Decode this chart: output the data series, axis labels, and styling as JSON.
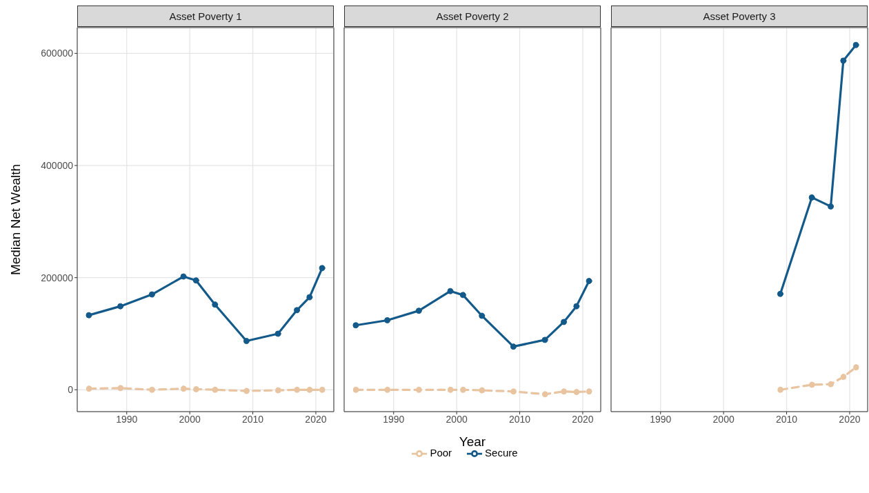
{
  "chart_data": [
    {
      "type": "line",
      "title": "Asset Poverty 1",
      "ylabel": "Median Net Wealth",
      "xlim": [
        1982.15,
        2022.85
      ],
      "xticks": [
        1990,
        2000,
        2010,
        2020
      ],
      "ylim": [
        -39000,
        646000
      ],
      "yticks": [
        0,
        200000,
        400000,
        600000
      ],
      "grid": true,
      "marker": "circle",
      "series": [
        {
          "color": "#e8c4a0",
          "line_style": "dashed",
          "x": [
            1984,
            1989,
            1994,
            1999,
            2001,
            2004,
            2009,
            2014,
            2017,
            2019,
            2021
          ],
          "values": [
            2000,
            3000,
            0,
            2000,
            1000,
            0,
            -2000,
            -1000,
            0,
            0,
            0
          ]
        },
        {
          "color": "#135a8a",
          "line_style": "solid",
          "x": [
            1984,
            1989,
            1994,
            1999,
            2001,
            2004,
            2009,
            2014,
            2017,
            2019,
            2021
          ],
          "values": [
            133000,
            149000,
            170000,
            202000,
            195000,
            152000,
            87000,
            100000,
            142000,
            165000,
            217000
          ]
        }
      ]
    },
    {
      "type": "line",
      "title": "Asset Poverty 2",
      "xlabel": "Year",
      "xlim": [
        1982.15,
        2022.85
      ],
      "xticks": [
        1990,
        2000,
        2010,
        2020
      ],
      "ylim": [
        -39000,
        646000
      ],
      "yticks": [
        0,
        200000,
        400000,
        600000
      ],
      "grid": true,
      "marker": "circle",
      "legend": "bottom",
      "tick_labels": "x",
      "series": [
        {
          "name": "Poor",
          "color": "#e8c4a0",
          "line_style": "dashed",
          "x": [
            1984,
            1989,
            1994,
            1999,
            2001,
            2004,
            2009,
            2014,
            2017,
            2019,
            2021
          ],
          "values": [
            0,
            0,
            0,
            0,
            0,
            -1000,
            -3000,
            -8000,
            -3000,
            -4000,
            -3000
          ]
        },
        {
          "name": "Secure",
          "color": "#135a8a",
          "line_style": "solid",
          "x": [
            1984,
            1989,
            1994,
            1999,
            2001,
            2004,
            2009,
            2014,
            2017,
            2019,
            2021
          ],
          "values": [
            115000,
            124000,
            141000,
            176000,
            169000,
            132000,
            77000,
            89000,
            121000,
            149000,
            194000
          ]
        }
      ]
    },
    {
      "type": "line",
      "title": "Asset Poverty 3",
      "xlim": [
        1982.15,
        2022.85
      ],
      "xticks": [
        1990,
        2000,
        2010,
        2020
      ],
      "ylim": [
        -39000,
        646000
      ],
      "yticks": [
        0,
        200000,
        400000,
        600000
      ],
      "grid": true,
      "marker": "circle",
      "tick_labels": "x",
      "series": [
        {
          "color": "#e8c4a0",
          "line_style": "dashed",
          "x": [
            2009,
            2014,
            2017,
            2019,
            2021
          ],
          "values": [
            0,
            9000,
            10000,
            23000,
            40000
          ]
        },
        {
          "color": "#135a8a",
          "line_style": "solid",
          "x": [
            2009,
            2014,
            2017,
            2019,
            2021
          ],
          "values": [
            171000,
            343000,
            327000,
            587000,
            615000
          ]
        }
      ]
    }
  ]
}
